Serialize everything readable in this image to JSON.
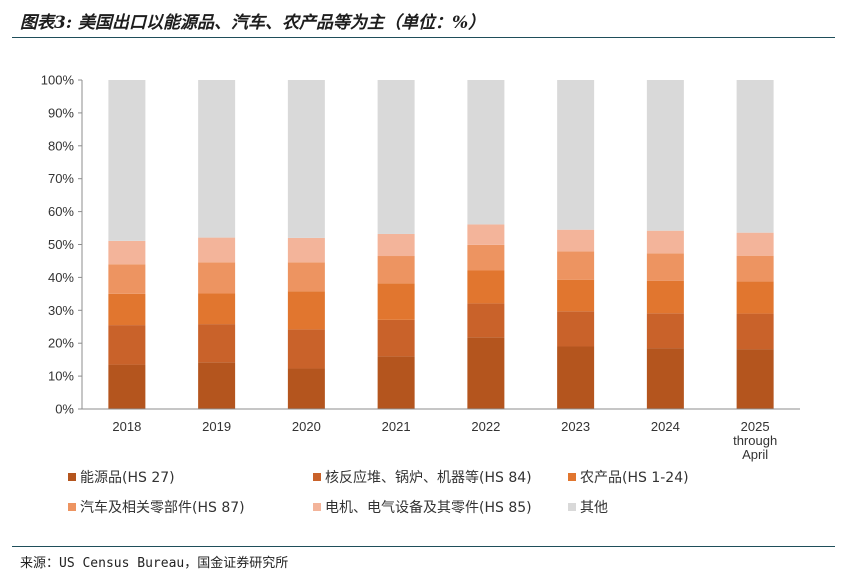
{
  "title": "图表3: 美国出口以能源品、汽车、农产品等为主（单位：%）",
  "source": "来源：US Census Bureau，国金证券研究所",
  "chart_data": {
    "type": "bar",
    "stacked": true,
    "categories": [
      [
        "2018"
      ],
      [
        "2019"
      ],
      [
        "2020"
      ],
      [
        "2021"
      ],
      [
        "2022"
      ],
      [
        "2023"
      ],
      [
        "2024"
      ],
      [
        "2025",
        "through",
        "April"
      ]
    ],
    "ylim": [
      0,
      100
    ],
    "yticks": [
      "0%",
      "10%",
      "20%",
      "30%",
      "40%",
      "50%",
      "60%",
      "70%",
      "80%",
      "90%",
      "100%"
    ],
    "grid": false,
    "legend_position": "bottom",
    "series": [
      {
        "name": "能源品(HS 27)",
        "color": "#b4551e",
        "values": [
          13.5,
          14.2,
          12.3,
          16.0,
          21.8,
          19.0,
          18.5,
          18.2
        ]
      },
      {
        "name": "核反应堆、锅炉、机器等(HS 84)",
        "color": "#c9622a",
        "values": [
          12.0,
          11.6,
          11.9,
          11.1,
          10.3,
          10.7,
          10.6,
          10.8
        ]
      },
      {
        "name": "农产品(HS 1-24)",
        "color": "#e1762f",
        "values": [
          9.5,
          9.3,
          11.6,
          11.1,
          10.0,
          9.6,
          9.9,
          9.8
        ]
      },
      {
        "name": "汽车及相关零部件(HS 87)",
        "color": "#ed9461",
        "values": [
          9.0,
          9.5,
          8.8,
          8.3,
          7.8,
          8.6,
          8.3,
          7.8
        ]
      },
      {
        "name": "电机、电气设备及其零件(HS 85)",
        "color": "#f3b49a",
        "values": [
          7.1,
          7.5,
          7.4,
          6.7,
          6.2,
          6.6,
          6.9,
          7.0
        ]
      },
      {
        "name": "其他",
        "color": "#d9d9d9",
        "values": [
          48.9,
          47.9,
          48.0,
          46.8,
          43.9,
          45.5,
          45.8,
          46.4
        ]
      }
    ]
  }
}
